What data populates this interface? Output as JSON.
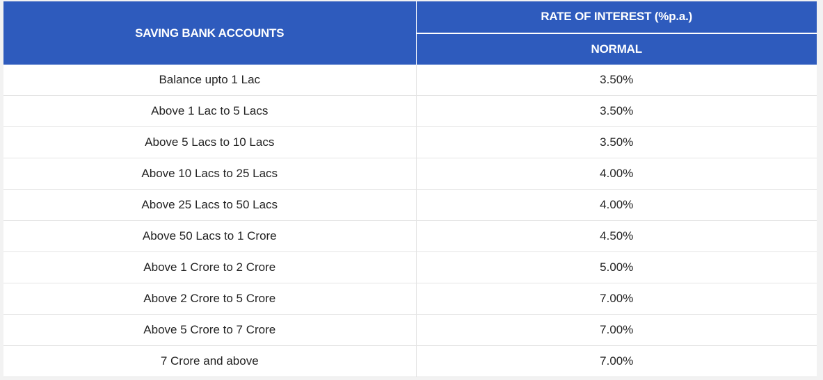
{
  "header": {
    "accounts_label": "SAVING BANK ACCOUNTS",
    "rate_label": "RATE OF INTEREST (%p.a.)",
    "normal_label": "NORMAL"
  },
  "rows": [
    {
      "range": "Balance upto 1 Lac",
      "rate": "3.50%"
    },
    {
      "range": "Above 1 Lac to 5 Lacs",
      "rate": "3.50%"
    },
    {
      "range": "Above 5 Lacs to 10 Lacs",
      "rate": "3.50%"
    },
    {
      "range": "Above 10 Lacs to 25 Lacs",
      "rate": "4.00%"
    },
    {
      "range": "Above 25 Lacs to 50 Lacs",
      "rate": "4.00%"
    },
    {
      "range": "Above 50 Lacs to 1 Crore",
      "rate": "4.50%"
    },
    {
      "range": "Above 1 Crore to 2 Crore",
      "rate": "5.00%"
    },
    {
      "range": "Above 2 Crore to 5 Crore",
      "rate": "7.00%"
    },
    {
      "range": "Above 5 Crore to 7 Crore",
      "rate": "7.00%"
    },
    {
      "range": "7 Crore and above",
      "rate": "7.00%"
    }
  ],
  "colors": {
    "header_bg": "#2e5bbd",
    "header_text": "#ffffff",
    "body_text": "#222222"
  }
}
